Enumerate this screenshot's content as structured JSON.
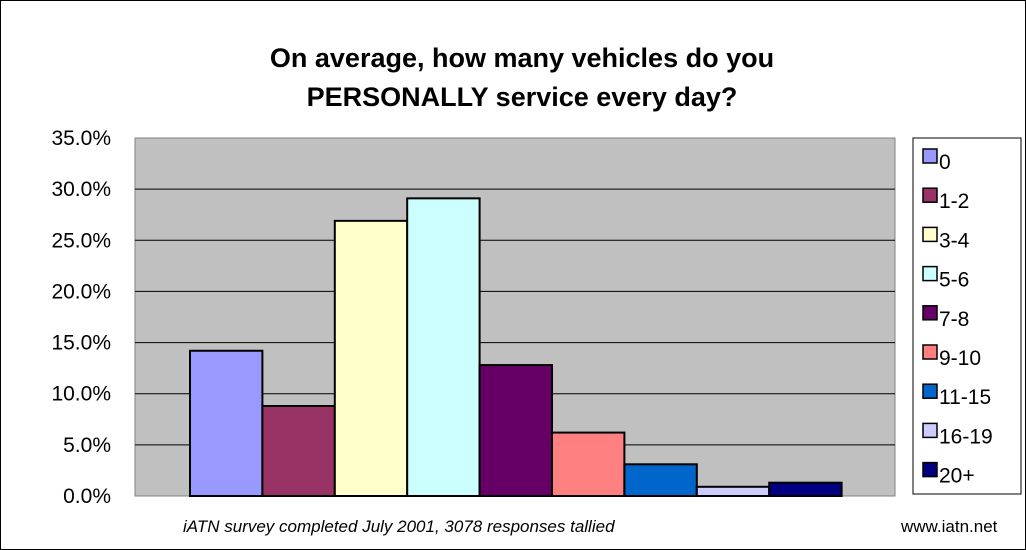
{
  "chart_data": {
    "type": "bar",
    "title_lines": [
      "On average, how many vehicles do you",
      "PERSONALLY service every day?"
    ],
    "categories": [
      "0",
      "1-2",
      "3-4",
      "5-6",
      "7-8",
      "9-10",
      "11-15",
      "16-19",
      "20+"
    ],
    "values": [
      14.2,
      8.8,
      26.9,
      29.1,
      12.8,
      6.2,
      3.1,
      0.9,
      1.3
    ],
    "colors": [
      "#9999ff",
      "#993366",
      "#ffffcc",
      "#ccffff",
      "#660066",
      "#ff8080",
      "#0066cc",
      "#ccccff",
      "#000080"
    ],
    "y_ticks": [
      "0.0%",
      "5.0%",
      "10.0%",
      "15.0%",
      "20.0%",
      "25.0%",
      "30.0%",
      "35.0%"
    ],
    "ylim": [
      0,
      35
    ],
    "grid": true,
    "plot_background": "#c0c0c0",
    "legend_position": "right",
    "footnote": "iATN survey completed July 2001, 3078 responses tallied",
    "credit": "www.iatn.net"
  }
}
